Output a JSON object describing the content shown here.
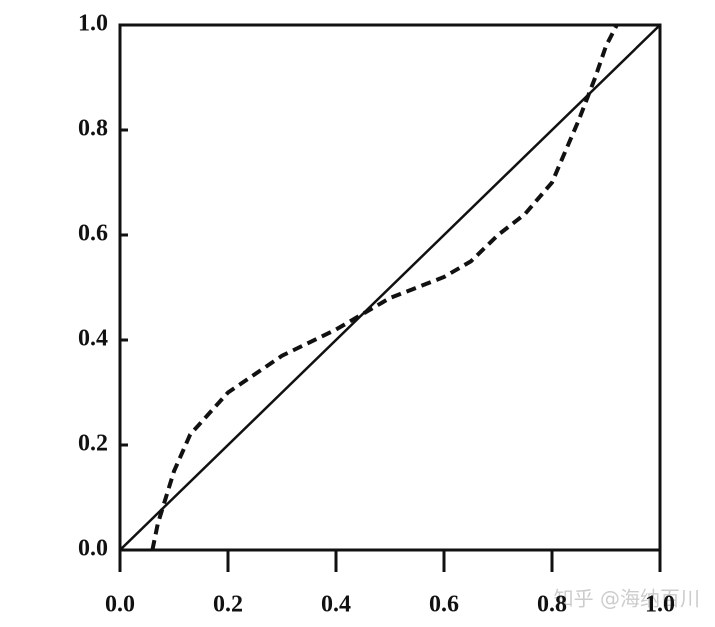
{
  "chart_data": {
    "type": "line",
    "series": [
      {
        "style": "solid",
        "color": "#111111",
        "x": [
          0,
          1
        ],
        "values": [
          0,
          1
        ]
      },
      {
        "style": "dashed",
        "color": "#111111",
        "x": [
          0.06,
          0.07,
          0.1,
          0.13,
          0.2,
          0.3,
          0.4,
          0.45,
          0.5,
          0.6,
          0.65,
          0.7,
          0.75,
          0.8,
          0.85,
          0.88,
          0.9,
          0.92
        ],
        "values": [
          0,
          0.05,
          0.15,
          0.22,
          0.3,
          0.37,
          0.42,
          0.45,
          0.48,
          0.52,
          0.55,
          0.6,
          0.64,
          0.7,
          0.82,
          0.9,
          0.96,
          1.0
        ]
      }
    ],
    "xlim": [
      0,
      1
    ],
    "ylim": [
      0,
      1
    ],
    "xticks": [
      {
        "value": 0,
        "label": "0.0"
      },
      {
        "value": 0.2,
        "label": "0.2"
      },
      {
        "value": 0.4,
        "label": "0.4"
      },
      {
        "value": 0.6,
        "label": "0.6"
      },
      {
        "value": 0.8,
        "label": "0.8"
      },
      {
        "value": 1,
        "label": "1.0"
      }
    ],
    "yticks": [
      {
        "value": 0,
        "label": "0.0"
      },
      {
        "value": 0.2,
        "label": "0.2"
      },
      {
        "value": 0.4,
        "label": "0.4"
      },
      {
        "value": 0.6,
        "label": "0.6"
      },
      {
        "value": 0.8,
        "label": "0.8"
      },
      {
        "value": 1,
        "label": "1.0"
      }
    ],
    "watermark": "知乎 @海纳百川"
  }
}
